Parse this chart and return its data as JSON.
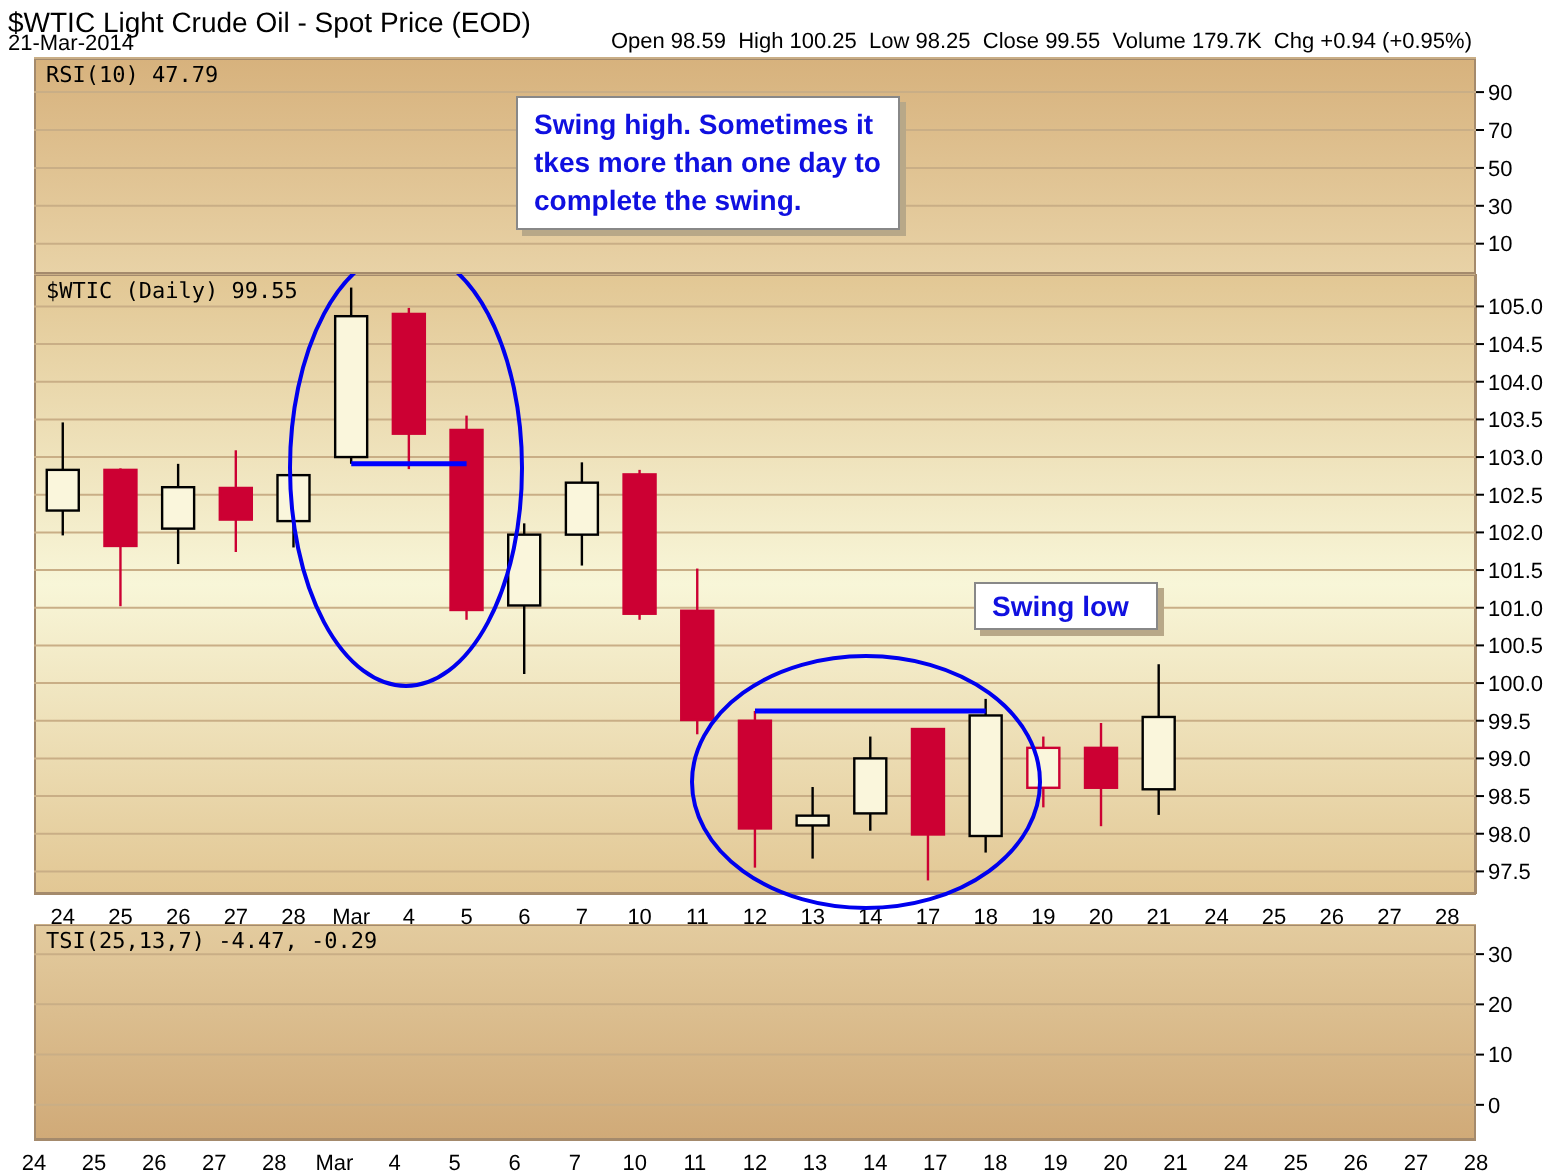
{
  "chart_data": [
    {
      "type": "line",
      "title": "$WTIC Light Crude Oil - Spot Price (EOD)",
      "subtitle": "21-Mar-2014",
      "ylabel": "RSI(10) 47.79",
      "annotations": [
        "Open 98.59  High 100.25  Low 98.25  Close 99.55  Volume 179.7K  Chg +0.94 (+0.95%)",
        "Swing high. Sometimes it tkes more than one day to complete the swing."
      ],
      "categories": [
        null,
        null,
        null,
        null,
        null,
        null,
        null,
        null,
        null,
        null,
        null,
        null,
        null,
        null,
        null,
        null,
        null,
        null,
        null,
        null,
        null,
        null,
        null,
        null,
        null
      ],
      "ylim": [
        -6,
        108
      ],
      "yticks": [
        10,
        30,
        50,
        70,
        90
      ],
      "grid": "y",
      "tick_labels": "y"
    },
    {
      "type": "candlestick",
      "ylabel": "$WTIC (Daily) 99.55",
      "annotations": [
        "Swing low"
      ],
      "categories": [
        "24",
        "25",
        "26",
        "27",
        "28",
        "Mar",
        "4",
        "5",
        "6",
        "7",
        "10",
        "11",
        "12",
        "13",
        "14",
        "17",
        "18",
        "19",
        "20",
        "21",
        "24",
        "25",
        "26",
        "27",
        "28"
      ],
      "ohlc": [
        [
          102.29,
          103.46,
          101.96,
          102.83
        ],
        [
          102.83,
          102.85,
          101.02,
          101.82
        ],
        [
          102.05,
          102.91,
          101.58,
          102.6
        ],
        [
          102.59,
          103.09,
          101.74,
          102.17
        ],
        [
          102.15,
          102.76,
          101.8,
          102.76
        ],
        [
          103.0,
          105.25,
          102.91,
          104.87
        ],
        [
          104.9,
          104.98,
          102.84,
          103.31
        ],
        [
          103.36,
          103.55,
          100.84,
          100.97
        ],
        [
          101.03,
          102.12,
          100.12,
          101.97
        ],
        [
          101.97,
          102.93,
          101.56,
          102.66
        ],
        [
          102.77,
          102.83,
          100.84,
          100.92
        ],
        [
          100.96,
          101.52,
          99.32,
          99.51
        ],
        [
          99.5,
          99.63,
          97.55,
          98.07
        ],
        [
          98.11,
          98.62,
          97.67,
          98.24
        ],
        [
          98.27,
          99.29,
          98.04,
          99.0
        ],
        [
          99.39,
          99.39,
          97.38,
          97.99
        ],
        [
          97.97,
          99.79,
          97.75,
          99.57
        ],
        [
          98.61,
          99.29,
          98.35,
          99.14
        ],
        [
          99.14,
          99.47,
          98.1,
          98.61
        ],
        [
          98.59,
          100.25,
          98.25,
          99.55
        ],
        null,
        null,
        null,
        null,
        null
      ],
      "colors": [
        "#000000",
        "#cc0033",
        "#000000",
        "#cc0033",
        "#000000",
        "#000000",
        "#cc0033",
        "#cc0033",
        "#000000",
        "#000000",
        "#cc0033",
        "#cc0033",
        "#cc0033",
        "#000000",
        "#000000",
        "#cc0033",
        "#000000",
        "#cc0033",
        "#cc0033",
        "#000000",
        null,
        null,
        null,
        null,
        null
      ],
      "series": [
        {
          "type": "line",
          "color": "#0000ff",
          "x": [
            "Mar",
            "5"
          ],
          "values": [
            102.91,
            102.91
          ]
        },
        {
          "type": "line",
          "color": "#0000ff",
          "x": [
            "12",
            "18"
          ],
          "values": [
            99.63,
            99.63
          ]
        }
      ],
      "ylim": [
        97.2,
        105.43
      ],
      "yticks": [
        {
          "value": 97.5,
          "label": "97.5"
        },
        {
          "value": 98,
          "label": "98.0"
        },
        {
          "value": 98.5,
          "label": "98.5"
        },
        {
          "value": 99,
          "label": "99.0"
        },
        {
          "value": 99.5,
          "label": "99.5"
        },
        {
          "value": 100,
          "label": "100.0"
        },
        {
          "value": 100.5,
          "label": "100.5"
        },
        {
          "value": 101,
          "label": "101.0"
        },
        {
          "value": 101.5,
          "label": "101.5"
        },
        {
          "value": 102,
          "label": "102.0"
        },
        {
          "value": 102.5,
          "label": "102.5"
        },
        {
          "value": 103,
          "label": "103.0"
        },
        {
          "value": 103.5,
          "label": "103.5"
        },
        {
          "value": 104,
          "label": "104.0"
        },
        {
          "value": 104.5,
          "label": "104.5"
        },
        {
          "value": 105,
          "label": "105.0"
        }
      ],
      "grid": "y"
    },
    {
      "type": "line",
      "ylabel": "TSI(25,13,7) -4.47, -0.29",
      "categories": [
        "24",
        "25",
        "26",
        "27",
        "28",
        "Mar",
        "4",
        "5",
        "6",
        "7",
        "10",
        "11",
        "12",
        "13",
        "14",
        "17",
        "18",
        "19",
        "20",
        "21",
        "24",
        "25",
        "26",
        "27",
        "28"
      ],
      "ylim": [
        -7,
        36
      ],
      "yticks": [
        0,
        10,
        20,
        30
      ],
      "grid": "y"
    }
  ]
}
